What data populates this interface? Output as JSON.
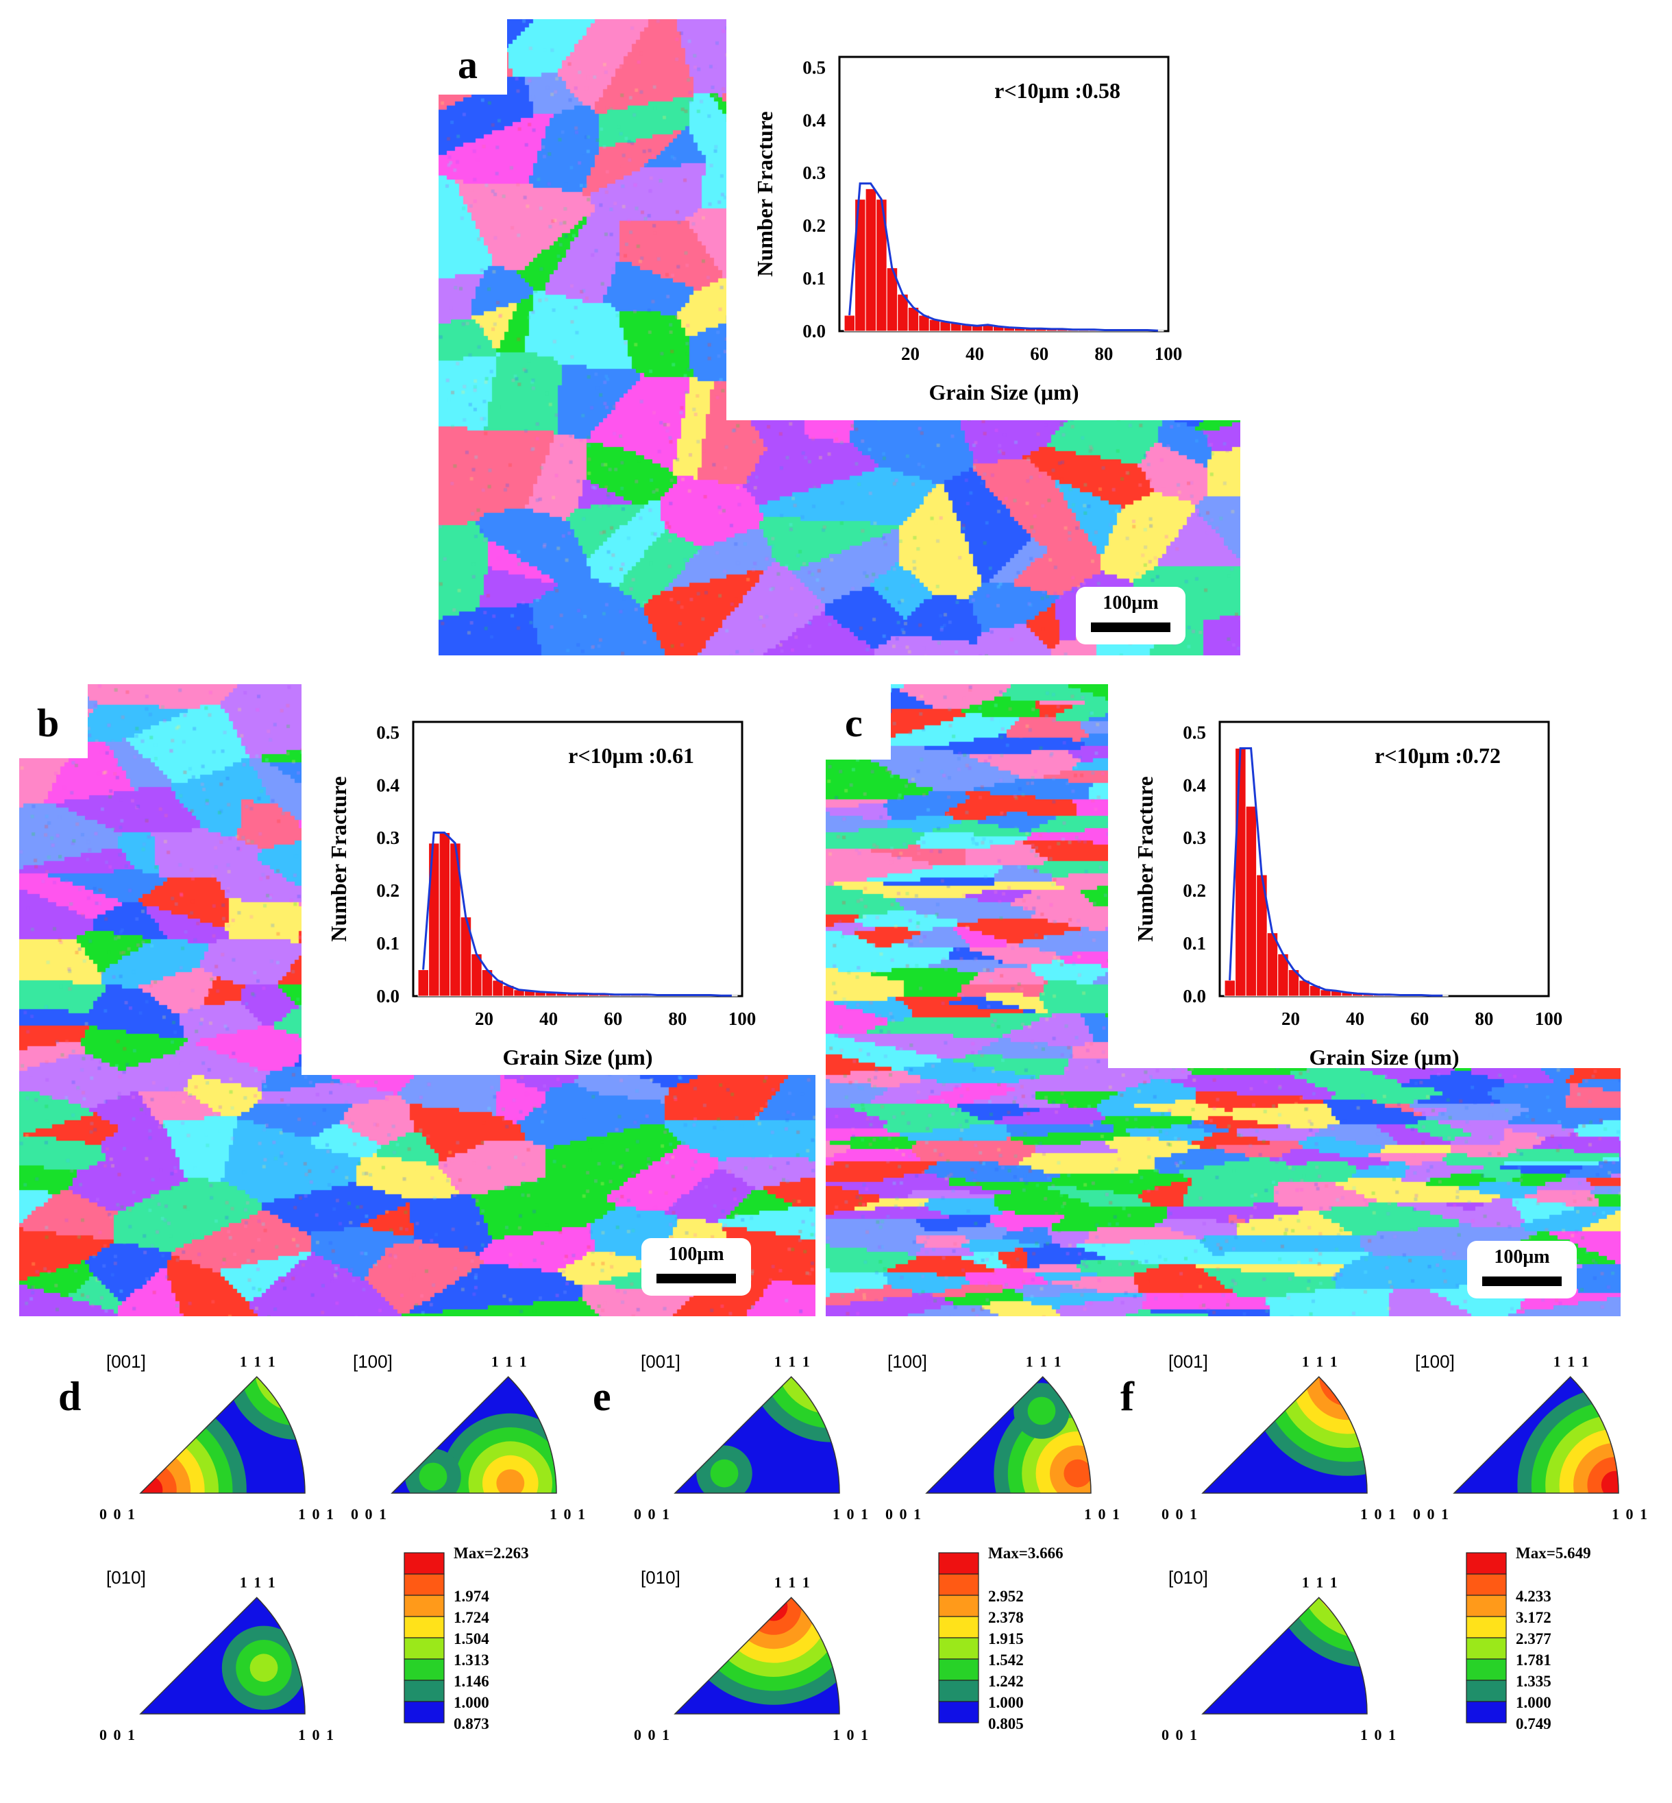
{
  "panels": {
    "a": {
      "letter": "a",
      "annotation": "r<10μm :0.58",
      "scale": "100μm",
      "hist": [
        0.03,
        0.25,
        0.27,
        0.25,
        0.12,
        0.07,
        0.045,
        0.03,
        0.022,
        0.018,
        0.015,
        0.012,
        0.01,
        0.012,
        0.009,
        0.007,
        0.006,
        0.005,
        0.005,
        0.004,
        0.004,
        0.003,
        0.003,
        0.003,
        0.002,
        0.002,
        0.002,
        0.002,
        0.002,
        0.001
      ],
      "fit_peak": 0.28
    },
    "b": {
      "letter": "b",
      "annotation": "r<10μm :0.61",
      "scale": "100μm",
      "hist": [
        0.05,
        0.29,
        0.31,
        0.29,
        0.15,
        0.08,
        0.05,
        0.03,
        0.02,
        0.012,
        0.01,
        0.008,
        0.007,
        0.006,
        0.005,
        0.005,
        0.004,
        0.004,
        0.003,
        0.003,
        0.003,
        0.003,
        0.002,
        0.002,
        0.002,
        0.002,
        0.002,
        0.002,
        0.001,
        0.001
      ],
      "fit_peak": 0.31
    },
    "c": {
      "letter": "c",
      "annotation": "r<10μm :0.72",
      "scale": "100μm",
      "hist": [
        0.03,
        0.47,
        0.36,
        0.23,
        0.12,
        0.08,
        0.05,
        0.03,
        0.02,
        0.012,
        0.01,
        0.007,
        0.005,
        0.004,
        0.003,
        0.003,
        0.002,
        0.002,
        0.002,
        0.001,
        0.001
      ],
      "fit_peak": 0.47
    }
  },
  "axes": {
    "ylabel": "Number Fracture",
    "xlabel": "Grain Size (μm)",
    "yticks": [
      "0.0",
      "0.1",
      "0.2",
      "0.3",
      "0.4",
      "0.5"
    ],
    "xticks": [
      "20",
      "40",
      "60",
      "80",
      "100"
    ]
  },
  "ipf_labels": {
    "z": "[001]",
    "x": "[100]",
    "y": "[010]",
    "c001": "0 0 1",
    "c101": "1 0 1",
    "c111": "1 1 1"
  },
  "ipf_sets": {
    "d": {
      "letter": "d",
      "max": "Max=2.263",
      "levels": [
        "1.974",
        "1.724",
        "1.504",
        "1.313",
        "1.146",
        "1.000",
        "0.873"
      ]
    },
    "e": {
      "letter": "e",
      "max": "Max=3.666",
      "levels": [
        "2.952",
        "2.378",
        "1.915",
        "1.542",
        "1.242",
        "1.000",
        "0.805"
      ]
    },
    "f": {
      "letter": "f",
      "max": "Max=5.649",
      "levels": [
        "4.233",
        "3.172",
        "2.377",
        "1.781",
        "1.335",
        "1.000",
        "0.749"
      ]
    }
  },
  "colors": {
    "hist_bar": "#ee1111",
    "fit_line": "#1a3ad6",
    "levels": [
      "#ee1111",
      "#ff5a14",
      "#ff9a1a",
      "#ffe21a",
      "#9be81a",
      "#28d228",
      "#1f8f6a",
      "#1010e6"
    ],
    "ebsd": [
      "#ff55ee",
      "#2a5cff",
      "#3bc0ff",
      "#ff3a2a",
      "#c27aff",
      "#38e8a0",
      "#7a9bff",
      "#ff86c8",
      "#18e02a",
      "#3a88ff",
      "#b050ff",
      "#ff6a90",
      "#5ef4ff",
      "#fff06a"
    ]
  }
}
